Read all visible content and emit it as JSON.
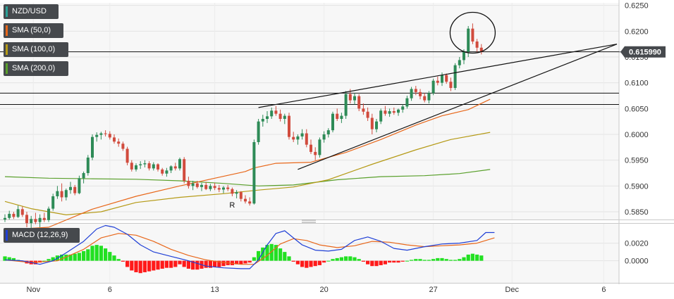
{
  "legend": {
    "symbol": "NZD/USD",
    "sma50": "SMA (50,0)",
    "sma100": "SMA (100,0)",
    "sma200": "SMA (200,0)",
    "macd": "MACD (12,26,9)"
  },
  "colors": {
    "up": "#2e8b57",
    "down": "#d14b3d",
    "sma50": "#e8671a",
    "sma100": "#b59a16",
    "sma200": "#5aa02c",
    "macd_line": "#1f3fd6",
    "signal_line": "#e8671a",
    "hist_pos": "#22e022",
    "hist_neg": "#ff1a1a",
    "symbol_swatch": "#2aa198",
    "price_tag": "#46494d"
  },
  "last_price": "0.615990",
  "annotation_text": "R",
  "chart_data": {
    "type": "candlestick",
    "title": "NZD/USD",
    "x_ticks": [
      {
        "label": "Nov",
        "bar": 6.5
      },
      {
        "label": "6",
        "bar": 24
      },
      {
        "label": "13",
        "bar": 48
      },
      {
        "label": "20",
        "bar": 73
      },
      {
        "label": "27",
        "bar": 98
      },
      {
        "label": "Dec",
        "bar": 116
      },
      {
        "label": "6",
        "bar": 137
      }
    ],
    "y_ticks": [
      "0.6250",
      "0.6200",
      "0.6150",
      "0.6100",
      "0.6050",
      "0.6000",
      "0.5950",
      "0.5900",
      "0.5850"
    ],
    "ylim": [
      0.5835,
      0.6255
    ],
    "candles": [
      [
        0.5835,
        0.5845,
        0.583,
        0.5838
      ],
      [
        0.5838,
        0.5852,
        0.5835,
        0.5846
      ],
      [
        0.5846,
        0.585,
        0.5836,
        0.584
      ],
      [
        0.584,
        0.5862,
        0.5838,
        0.5855
      ],
      [
        0.5855,
        0.586,
        0.584,
        0.5844
      ],
      [
        0.5844,
        0.585,
        0.582,
        0.5828
      ],
      [
        0.5828,
        0.5842,
        0.5818,
        0.5836
      ],
      [
        0.5836,
        0.5848,
        0.5826,
        0.583
      ],
      [
        0.583,
        0.5845,
        0.582,
        0.5838
      ],
      [
        0.5838,
        0.5848,
        0.583,
        0.5834
      ],
      [
        0.5834,
        0.586,
        0.583,
        0.5856
      ],
      [
        0.5856,
        0.5885,
        0.5852,
        0.588
      ],
      [
        0.588,
        0.59,
        0.5875,
        0.589
      ],
      [
        0.589,
        0.5905,
        0.587,
        0.5878
      ],
      [
        0.5878,
        0.5895,
        0.5872,
        0.5892
      ],
      [
        0.5892,
        0.5908,
        0.5885,
        0.5898
      ],
      [
        0.5898,
        0.5902,
        0.5882,
        0.5886
      ],
      [
        0.5886,
        0.592,
        0.5884,
        0.5915
      ],
      [
        0.5915,
        0.5928,
        0.5905,
        0.5925
      ],
      [
        0.5925,
        0.596,
        0.592,
        0.5955
      ],
      [
        0.5955,
        0.6,
        0.595,
        0.5995
      ],
      [
        0.5995,
        0.6004,
        0.5986,
        0.5999
      ],
      [
        0.5999,
        0.6005,
        0.599,
        0.6002
      ],
      [
        0.6002,
        0.6008,
        0.5996,
        0.6001
      ],
      [
        0.6001,
        0.6006,
        0.599,
        0.5994
      ],
      [
        0.5994,
        0.6,
        0.5982,
        0.5986
      ],
      [
        0.5986,
        0.5992,
        0.5976,
        0.5982
      ],
      [
        0.5982,
        0.5986,
        0.5968,
        0.5972
      ],
      [
        0.5972,
        0.5976,
        0.594,
        0.5945
      ],
      [
        0.5945,
        0.595,
        0.5928,
        0.5932
      ],
      [
        0.5932,
        0.5944,
        0.5928,
        0.594
      ],
      [
        0.594,
        0.5948,
        0.5933,
        0.5942
      ],
      [
        0.5942,
        0.595,
        0.5936,
        0.5944
      ],
      [
        0.5944,
        0.5948,
        0.593,
        0.5934
      ],
      [
        0.5934,
        0.5946,
        0.593,
        0.5942
      ],
      [
        0.5942,
        0.5944,
        0.5928,
        0.5932
      ],
      [
        0.5932,
        0.5935,
        0.592,
        0.5924
      ],
      [
        0.5924,
        0.5935,
        0.5918,
        0.593
      ],
      [
        0.593,
        0.594,
        0.5925,
        0.5938
      ],
      [
        0.5938,
        0.5945,
        0.593,
        0.5934
      ],
      [
        0.5934,
        0.5955,
        0.593,
        0.5952
      ],
      [
        0.5952,
        0.5956,
        0.5905,
        0.591
      ],
      [
        0.591,
        0.5918,
        0.5895,
        0.59
      ],
      [
        0.59,
        0.591,
        0.5892,
        0.5905
      ],
      [
        0.5905,
        0.591,
        0.5895,
        0.5898
      ],
      [
        0.5898,
        0.5906,
        0.589,
        0.5902
      ],
      [
        0.5902,
        0.5908,
        0.5892,
        0.5894
      ],
      [
        0.5894,
        0.5904,
        0.589,
        0.59
      ],
      [
        0.59,
        0.5906,
        0.5892,
        0.5896
      ],
      [
        0.5896,
        0.5902,
        0.5888,
        0.5893
      ],
      [
        0.5893,
        0.59,
        0.5886,
        0.5897
      ],
      [
        0.5897,
        0.5902,
        0.589,
        0.5894
      ],
      [
        0.5894,
        0.5897,
        0.588,
        0.5885
      ],
      [
        0.5885,
        0.5892,
        0.5876,
        0.5888
      ],
      [
        0.5888,
        0.589,
        0.587,
        0.5875
      ],
      [
        0.5875,
        0.5882,
        0.5866,
        0.587
      ],
      [
        0.587,
        0.5878,
        0.5862,
        0.5866
      ],
      [
        0.5866,
        0.599,
        0.5864,
        0.5985
      ],
      [
        0.5985,
        0.603,
        0.598,
        0.6025
      ],
      [
        0.6025,
        0.6038,
        0.6015,
        0.603
      ],
      [
        0.603,
        0.6045,
        0.6022,
        0.6035
      ],
      [
        0.6035,
        0.6052,
        0.603,
        0.6046
      ],
      [
        0.6046,
        0.6055,
        0.6036,
        0.604
      ],
      [
        0.604,
        0.6048,
        0.6025,
        0.603
      ],
      [
        0.603,
        0.604,
        0.602,
        0.6036
      ],
      [
        0.6036,
        0.6042,
        0.599,
        0.5995
      ],
      [
        0.5995,
        0.6005,
        0.5985,
        0.599
      ],
      [
        0.599,
        0.6,
        0.598,
        0.5996
      ],
      [
        0.5996,
        0.601,
        0.599,
        0.6002
      ],
      [
        0.6002,
        0.601,
        0.5975,
        0.598
      ],
      [
        0.598,
        0.599,
        0.5962,
        0.5966
      ],
      [
        0.5966,
        0.5975,
        0.595,
        0.596
      ],
      [
        0.596,
        0.5994,
        0.5955,
        0.599
      ],
      [
        0.599,
        0.6006,
        0.5984,
        0.6
      ],
      [
        0.6,
        0.6012,
        0.5994,
        0.6008
      ],
      [
        0.6008,
        0.6044,
        0.6004,
        0.604
      ],
      [
        0.604,
        0.605,
        0.6026,
        0.603
      ],
      [
        0.603,
        0.6042,
        0.6022,
        0.6036
      ],
      [
        0.6036,
        0.6084,
        0.603,
        0.6078
      ],
      [
        0.6078,
        0.6088,
        0.606,
        0.6066
      ],
      [
        0.6066,
        0.608,
        0.6058,
        0.6074
      ],
      [
        0.6074,
        0.6078,
        0.6045,
        0.605
      ],
      [
        0.605,
        0.606,
        0.6038,
        0.6044
      ],
      [
        0.6044,
        0.6052,
        0.6026,
        0.6032
      ],
      [
        0.6032,
        0.604,
        0.6,
        0.601
      ],
      [
        0.601,
        0.603,
        0.6004,
        0.6025
      ],
      [
        0.6025,
        0.605,
        0.602,
        0.6046
      ],
      [
        0.6046,
        0.6055,
        0.6036,
        0.604
      ],
      [
        0.604,
        0.605,
        0.6034,
        0.6045
      ],
      [
        0.6045,
        0.6052,
        0.6038,
        0.6042
      ],
      [
        0.6042,
        0.605,
        0.6036,
        0.6048
      ],
      [
        0.6048,
        0.6058,
        0.6042,
        0.6054
      ],
      [
        0.6054,
        0.6075,
        0.605,
        0.607
      ],
      [
        0.607,
        0.6092,
        0.6065,
        0.6088
      ],
      [
        0.6088,
        0.6094,
        0.6076,
        0.6082
      ],
      [
        0.6082,
        0.6088,
        0.6068,
        0.6074
      ],
      [
        0.6074,
        0.608,
        0.6062,
        0.6066
      ],
      [
        0.6066,
        0.6084,
        0.606,
        0.608
      ],
      [
        0.608,
        0.6108,
        0.6076,
        0.6104
      ],
      [
        0.6104,
        0.6112,
        0.6095,
        0.61
      ],
      [
        0.61,
        0.612,
        0.6094,
        0.6115
      ],
      [
        0.6115,
        0.6118,
        0.6098,
        0.6102
      ],
      [
        0.6102,
        0.611,
        0.6084,
        0.609
      ],
      [
        0.609,
        0.6138,
        0.6086,
        0.6134
      ],
      [
        0.6134,
        0.615,
        0.6128,
        0.6144
      ],
      [
        0.6144,
        0.6165,
        0.6136,
        0.616
      ],
      [
        0.616,
        0.621,
        0.615,
        0.6205
      ],
      [
        0.6205,
        0.6215,
        0.6175,
        0.618
      ],
      [
        0.618,
        0.6185,
        0.616,
        0.6168
      ],
      [
        0.6168,
        0.6175,
        0.6155,
        0.616
      ]
    ],
    "sma50": [
      [
        0,
        0.5815
      ],
      [
        10,
        0.582
      ],
      [
        20,
        0.5855
      ],
      [
        30,
        0.588
      ],
      [
        40,
        0.59
      ],
      [
        48,
        0.5915
      ],
      [
        55,
        0.5928
      ],
      [
        57,
        0.5935
      ],
      [
        62,
        0.5944
      ],
      [
        70,
        0.5946
      ],
      [
        78,
        0.5965
      ],
      [
        86,
        0.599
      ],
      [
        94,
        0.6018
      ],
      [
        100,
        0.6036
      ],
      [
        106,
        0.6048
      ],
      [
        111,
        0.6068
      ]
    ],
    "sma100": [
      [
        0,
        0.587
      ],
      [
        6,
        0.5856
      ],
      [
        14,
        0.5844
      ],
      [
        22,
        0.585
      ],
      [
        30,
        0.5868
      ],
      [
        40,
        0.5878
      ],
      [
        50,
        0.5885
      ],
      [
        58,
        0.5892
      ],
      [
        66,
        0.5898
      ],
      [
        74,
        0.5912
      ],
      [
        84,
        0.5942
      ],
      [
        94,
        0.597
      ],
      [
        102,
        0.599
      ],
      [
        111,
        0.6004
      ]
    ],
    "sma200": [
      [
        0,
        0.5918
      ],
      [
        10,
        0.5915
      ],
      [
        20,
        0.5914
      ],
      [
        30,
        0.5913
      ],
      [
        40,
        0.591
      ],
      [
        50,
        0.5905
      ],
      [
        58,
        0.59
      ],
      [
        66,
        0.5902
      ],
      [
        76,
        0.5912
      ],
      [
        86,
        0.5918
      ],
      [
        96,
        0.592
      ],
      [
        104,
        0.5924
      ],
      [
        111,
        0.5932
      ]
    ],
    "trendlines": [
      {
        "points": [
          [
            58,
            0.6052
          ],
          [
            140,
            0.6175
          ]
        ]
      },
      {
        "points": [
          [
            67,
            0.5932
          ],
          [
            140,
            0.6175
          ]
        ]
      }
    ],
    "horizontal_lines": [
      0.616,
      0.608,
      0.6058
    ],
    "macd": {
      "ylim": [
        -0.0025,
        0.0042
      ],
      "y_ticks": [
        "0.0020",
        "0.0000"
      ],
      "macd_line": [
        [
          0,
          0.0001
        ],
        [
          4,
          0.0
        ],
        [
          8,
          -0.0004
        ],
        [
          11,
          0.0
        ],
        [
          14,
          0.0009
        ],
        [
          18,
          0.0022
        ],
        [
          21,
          0.0036
        ],
        [
          23,
          0.004
        ],
        [
          25,
          0.0038
        ],
        [
          28,
          0.003
        ],
        [
          31,
          0.0018
        ],
        [
          34,
          0.001
        ],
        [
          38,
          0.0005
        ],
        [
          42,
          0.0
        ],
        [
          46,
          -0.0006
        ],
        [
          50,
          -0.0008
        ],
        [
          54,
          -0.0009
        ],
        [
          56,
          -0.0009
        ],
        [
          58,
          0.0001
        ],
        [
          60,
          0.0018
        ],
        [
          62,
          0.0031
        ],
        [
          64,
          0.0034
        ],
        [
          66,
          0.0026
        ],
        [
          68,
          0.0018
        ],
        [
          71,
          0.0012
        ],
        [
          74,
          0.0011
        ],
        [
          77,
          0.0013
        ],
        [
          80,
          0.0023
        ],
        [
          83,
          0.0027
        ],
        [
          86,
          0.0022
        ],
        [
          89,
          0.0014
        ],
        [
          92,
          0.0012
        ],
        [
          96,
          0.0016
        ],
        [
          100,
          0.0019
        ],
        [
          104,
          0.002
        ],
        [
          108,
          0.0023
        ],
        [
          110,
          0.0032
        ],
        [
          112,
          0.0032
        ]
      ],
      "signal_line": [
        [
          0,
          0.0001
        ],
        [
          6,
          -0.0002
        ],
        [
          12,
          0.0
        ],
        [
          18,
          0.0013
        ],
        [
          22,
          0.0026
        ],
        [
          26,
          0.0031
        ],
        [
          30,
          0.0029
        ],
        [
          34,
          0.0022
        ],
        [
          38,
          0.0013
        ],
        [
          42,
          0.0006
        ],
        [
          46,
          0.0001
        ],
        [
          50,
          -0.0002
        ],
        [
          54,
          -0.0004
        ],
        [
          57,
          -0.0004
        ],
        [
          60,
          0.0006
        ],
        [
          63,
          0.0019
        ],
        [
          66,
          0.0025
        ],
        [
          69,
          0.0023
        ],
        [
          72,
          0.0018
        ],
        [
          76,
          0.0015
        ],
        [
          80,
          0.0017
        ],
        [
          84,
          0.0022
        ],
        [
          88,
          0.0021
        ],
        [
          92,
          0.0018
        ],
        [
          96,
          0.0016
        ],
        [
          100,
          0.0017
        ],
        [
          104,
          0.0018
        ],
        [
          108,
          0.002
        ],
        [
          112,
          0.0026
        ]
      ],
      "histogram": [
        0.0005,
        0.0004,
        0.0003,
        0.0001,
        -0.0001,
        -0.0003,
        -0.0004,
        -0.0004,
        -0.0002,
        0.0,
        0.0002,
        0.0004,
        0.0006,
        0.0007,
        0.0007,
        0.0007,
        0.0008,
        0.0009,
        0.0011,
        0.0013,
        0.0017,
        0.0018,
        0.0017,
        0.0014,
        0.001,
        0.0006,
        0.0002,
        -0.0001,
        -0.0007,
        -0.0011,
        -0.0013,
        -0.0014,
        -0.0013,
        -0.0012,
        -0.0011,
        -0.001,
        -0.0009,
        -0.0008,
        -0.0008,
        -0.0007,
        -0.0004,
        -0.0007,
        -0.0009,
        -0.001,
        -0.001,
        -0.0009,
        -0.0008,
        -0.0008,
        -0.0007,
        -0.0007,
        -0.0006,
        -0.0005,
        -0.0005,
        -0.0004,
        -0.0004,
        -0.0003,
        -0.0002,
        0.0004,
        0.0011,
        0.0015,
        0.0018,
        0.0019,
        0.0018,
        0.0014,
        0.001,
        0.0005,
        -0.0001,
        -0.0004,
        -0.0007,
        -0.0008,
        -0.0007,
        -0.0006,
        -0.0005,
        -0.0002,
        0.0,
        0.0002,
        0.0003,
        0.0004,
        0.0005,
        0.0005,
        0.0004,
        0.0002,
        -0.0001,
        -0.0004,
        -0.0006,
        -0.0006,
        -0.0005,
        -0.0004,
        -0.0002,
        -0.0002,
        -0.0002,
        -0.0001,
        0.0,
        0.0001,
        0.0002,
        0.0002,
        0.0001,
        0.0001,
        0.0002,
        0.0003,
        0.0003,
        0.0002,
        0.0001,
        0.0001,
        0.0002,
        0.0004,
        0.0007,
        0.0008,
        0.0007,
        0.0006
      ]
    }
  }
}
